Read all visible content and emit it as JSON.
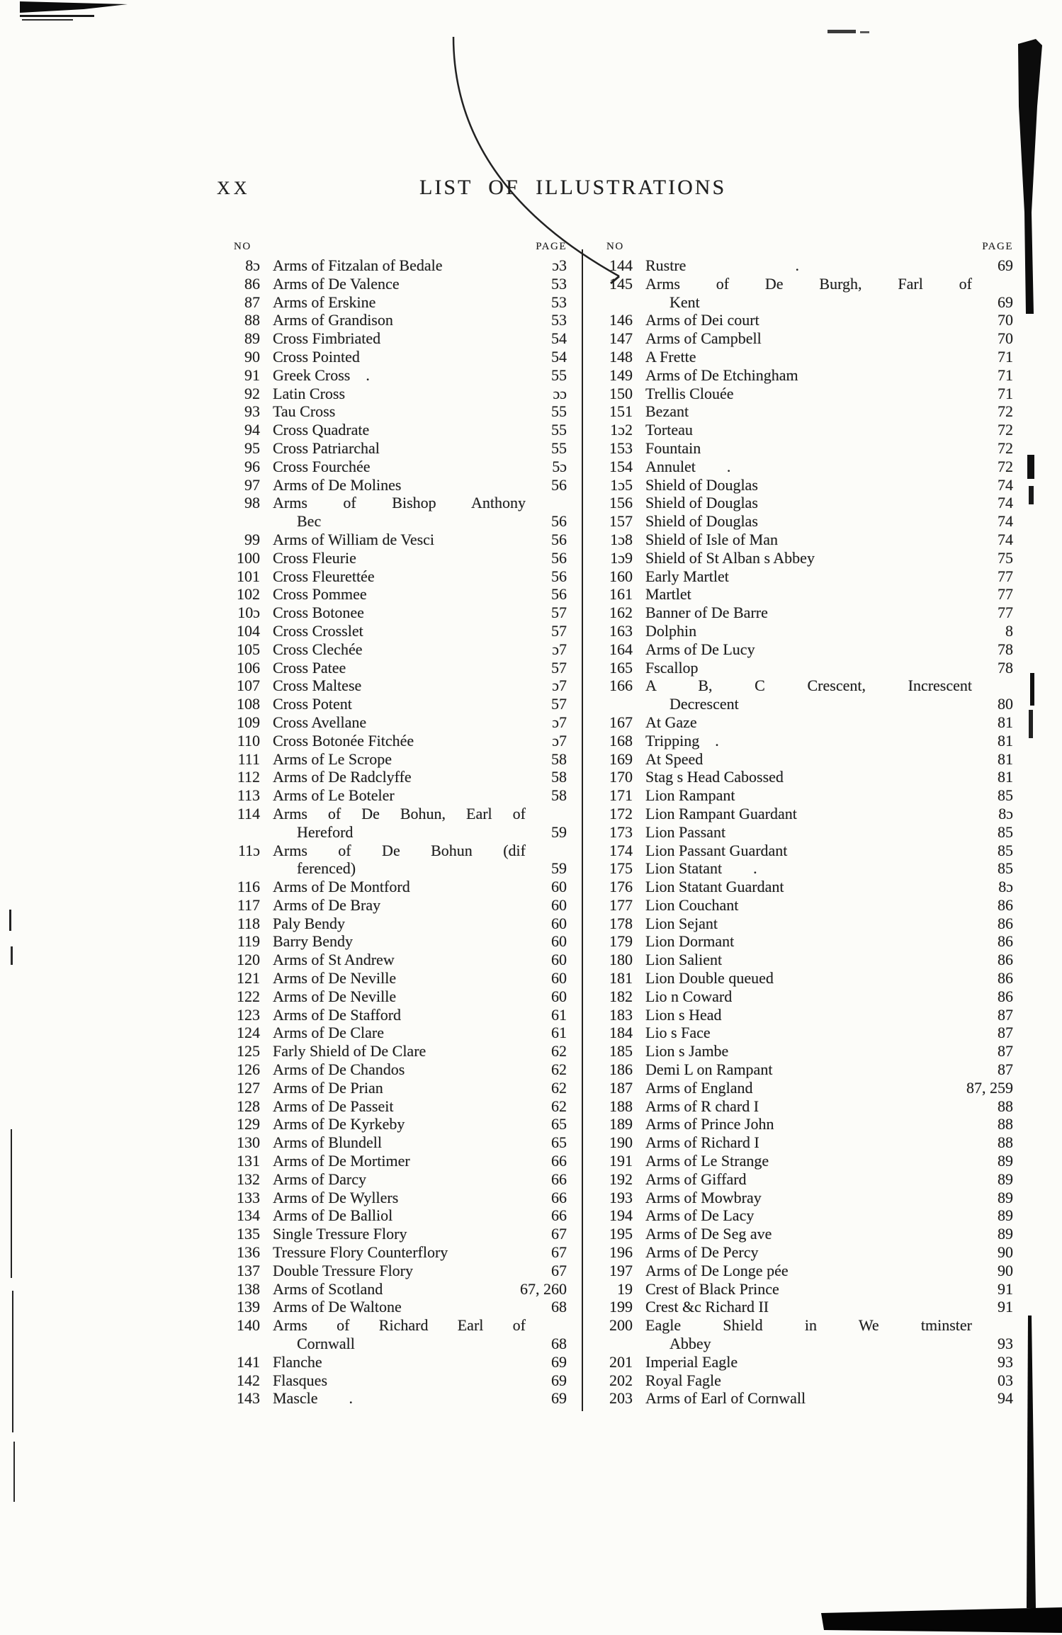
{
  "page": {
    "folio": "XX",
    "title": "LIST OF ILLUSTRATIONS"
  },
  "columns": {
    "no_header": "NO",
    "page_header": "PAGE"
  },
  "colors": {
    "paper": "#fcfcf9",
    "ink": "#1f1f1f",
    "artifact_ink": "#0c0c0c"
  },
  "left_entries": [
    {
      "no": "8ɔ",
      "line1": "Arms of Fitzalan of Bedale",
      "page": "ɔ3"
    },
    {
      "no": "86",
      "line1": "Arms of De Valence",
      "page": "53"
    },
    {
      "no": "87",
      "line1": "Arms of Erskine",
      "page": "53"
    },
    {
      "no": "88",
      "line1": "Arms of Grandison",
      "page": "53"
    },
    {
      "no": "89",
      "line1": "Cross Fimbriated",
      "page": "54"
    },
    {
      "no": "90",
      "line1": "Cross Pointed",
      "page": "54"
    },
    {
      "no": "91",
      "line1": "Greek Cross .",
      "page": "55"
    },
    {
      "no": "92",
      "line1": "Latin Cross",
      "page": "ɔɔ"
    },
    {
      "no": "93",
      "line1": "Tau Cross",
      "page": "55"
    },
    {
      "no": "94",
      "line1": "Cross Quadrate",
      "page": "55"
    },
    {
      "no": "95",
      "line1": "Cross Patriarchal",
      "page": "55"
    },
    {
      "no": "96",
      "line1": "Cross Fourchée",
      "page": "5ɔ"
    },
    {
      "no": "97",
      "line1": "Arms of De Molines",
      "page": "56"
    },
    {
      "no": "98",
      "line1": "Arms of Bishop Anthony",
      "line2": "Bec",
      "page": "56"
    },
    {
      "no": "99",
      "line1": "Arms of William de Vesci",
      "page": "56"
    },
    {
      "no": "100",
      "line1": "Cross Fleurie",
      "page": "56"
    },
    {
      "no": "101",
      "line1": "Cross Fleurettée",
      "page": "56"
    },
    {
      "no": "102",
      "line1": "Cross Pommee",
      "page": "56"
    },
    {
      "no": "10ɔ",
      "line1": "Cross Botonee",
      "page": "57"
    },
    {
      "no": "104",
      "line1": "Cross Crosslet",
      "page": "57"
    },
    {
      "no": "105",
      "line1": "Cross Clechée",
      "page": "ɔ7"
    },
    {
      "no": "106",
      "line1": "Cross Patee",
      "page": "57"
    },
    {
      "no": "107",
      "line1": "Cross Maltese",
      "page": "ɔ7"
    },
    {
      "no": "108",
      "line1": "Cross Potent",
      "page": "57"
    },
    {
      "no": "109",
      "line1": "Cross Avellane",
      "page": "ɔ7"
    },
    {
      "no": "110",
      "line1": "Cross Botonée Fitchée",
      "page": "ɔ7"
    },
    {
      "no": "111",
      "line1": "Arms of Le Scrope",
      "page": "58"
    },
    {
      "no": "112",
      "line1": "Arms of De Radclyffe",
      "page": "58"
    },
    {
      "no": "113",
      "line1": "Arms of Le Boteler",
      "page": "58"
    },
    {
      "no": "114",
      "line1": "Arms of De Bohun, Earl of",
      "line2": "Hereford",
      "page": "59"
    },
    {
      "no": "11ɔ",
      "line1": "Arms of De Bohun (dif",
      "line2": "ferenced)",
      "page": "59"
    },
    {
      "no": "116",
      "line1": "Arms of De Montford",
      "page": "60"
    },
    {
      "no": "117",
      "line1": "Arms of De Bray",
      "page": "60"
    },
    {
      "no": "118",
      "line1": "Paly Bendy",
      "page": "60"
    },
    {
      "no": "119",
      "line1": "Barry Bendy",
      "page": "60"
    },
    {
      "no": "120",
      "line1": "Arms of St Andrew",
      "page": "60"
    },
    {
      "no": "121",
      "line1": "Arms of De Neville",
      "page": "60"
    },
    {
      "no": "122",
      "line1": "Arms of De Neville",
      "page": "60"
    },
    {
      "no": "123",
      "line1": "Arms of De Stafford",
      "page": "61"
    },
    {
      "no": "124",
      "line1": "Arms of De Clare",
      "page": "61"
    },
    {
      "no": "125",
      "line1": "Farly Shield of De Clare",
      "page": "62"
    },
    {
      "no": "126",
      "line1": "Arms of De Chandos",
      "page": "62"
    },
    {
      "no": "127",
      "line1": "Arms of De Prian",
      "page": "62"
    },
    {
      "no": "128",
      "line1": "Arms of De Passeit",
      "page": "62"
    },
    {
      "no": "129",
      "line1": "Arms of De Kyrkeby",
      "page": "65"
    },
    {
      "no": "130",
      "line1": "Arms of Blundell",
      "page": "65"
    },
    {
      "no": "131",
      "line1": "Arms of De Mortimer",
      "page": "66"
    },
    {
      "no": "132",
      "line1": "Arms of Darcy",
      "page": "66"
    },
    {
      "no": "133",
      "line1": "Arms of De Wyllers",
      "page": "66"
    },
    {
      "no": "134",
      "line1": "Arms of De Balliol",
      "page": "66"
    },
    {
      "no": "135",
      "line1": "Single Tressure Flory",
      "page": "67"
    },
    {
      "no": "136",
      "line1": "Tressure Flory Counterflory",
      "page": "67"
    },
    {
      "no": "137",
      "line1": "Double Tressure Flory",
      "page": "67"
    },
    {
      "no": "138",
      "line1": "Arms of Scotland",
      "page": "67, 260"
    },
    {
      "no": "139",
      "line1": "Arms of De Waltone",
      "page": "68"
    },
    {
      "no": "140",
      "line1": "Arms of Richard Earl of",
      "line2": "Cornwall",
      "page": "68"
    },
    {
      "no": "141",
      "line1": "Flanche",
      "page": "69"
    },
    {
      "no": "142",
      "line1": "Flasques",
      "page": "69"
    },
    {
      "no": "143",
      "line1": "Mascle  .",
      "page": "69"
    }
  ],
  "right_entries": [
    {
      "no": "144",
      "line1": "Rustre       .",
      "page": "69"
    },
    {
      "no": "145",
      "line1": "Arms of De Burgh, Farl of",
      "line2": "Kent",
      "page": "69"
    },
    {
      "no": "146",
      "line1": "Arms of Dei court",
      "page": "70"
    },
    {
      "no": "147",
      "line1": "Arms of Campbell",
      "page": "70"
    },
    {
      "no": "148",
      "line1": "A Frette",
      "page": "71"
    },
    {
      "no": "149",
      "line1": "Arms of De Etchingham",
      "page": "71"
    },
    {
      "no": "150",
      "line1": "Trellis Clouée",
      "page": "71"
    },
    {
      "no": "151",
      "line1": "Bezant",
      "page": "72"
    },
    {
      "no": "1ɔ2",
      "line1": "Torteau",
      "page": "72"
    },
    {
      "no": "153",
      "line1": "Fountain",
      "page": "72"
    },
    {
      "no": "154",
      "line1": "Annulet  .",
      "page": "72"
    },
    {
      "no": "1ɔ5",
      "line1": "Shield of Douglas",
      "page": "74"
    },
    {
      "no": "156",
      "line1": "Shield of Douglas",
      "page": "74"
    },
    {
      "no": "157",
      "line1": "Shield of Douglas",
      "page": "74"
    },
    {
      "no": "1ɔ8",
      "line1": "Shield of Isle of Man",
      "page": "74"
    },
    {
      "no": "1ɔ9",
      "line1": "Shield of St Alban s Abbey",
      "page": "75"
    },
    {
      "no": "160",
      "line1": "Early Martlet",
      "page": "77"
    },
    {
      "no": "161",
      "line1": "Martlet",
      "page": "77"
    },
    {
      "no": "162",
      "line1": "Banner of De Barre",
      "page": "77"
    },
    {
      "no": "163",
      "line1": "Dolphin",
      "page": "8"
    },
    {
      "no": "164",
      "line1": "Arms of De Lucy",
      "page": "78"
    },
    {
      "no": "165",
      "line1": "Fscallop",
      "page": "78"
    },
    {
      "no": "166",
      "line1": "A B, C Crescent, Increscent",
      "line2": "Decrescent",
      "page": "80"
    },
    {
      "no": "167",
      "line1": "At Gaze",
      "page": "81"
    },
    {
      "no": "168",
      "line1": "Tripping .",
      "page": "81"
    },
    {
      "no": "169",
      "line1": "At Speed",
      "page": "81"
    },
    {
      "no": "170",
      "line1": "Stag s Head Cabossed",
      "page": "81"
    },
    {
      "no": "171",
      "line1": "Lion Rampant",
      "page": "85"
    },
    {
      "no": "172",
      "line1": "Lion Rampant Guardant",
      "page": "8ɔ"
    },
    {
      "no": "173",
      "line1": "Lion Passant",
      "page": "85"
    },
    {
      "no": "174",
      "line1": "Lion Passant Guardant",
      "page": "85"
    },
    {
      "no": "175",
      "line1": "Lion Statant  .",
      "page": "85"
    },
    {
      "no": "176",
      "line1": "Lion Statant Guardant",
      "page": "8ɔ"
    },
    {
      "no": "177",
      "line1": "Lion Couchant",
      "page": "86"
    },
    {
      "no": "178",
      "line1": "Lion Sejant",
      "page": "86"
    },
    {
      "no": "179",
      "line1": "Lion Dormant",
      "page": "86"
    },
    {
      "no": "180",
      "line1": "Lion Salient",
      "page": "86"
    },
    {
      "no": "181",
      "line1": "Lion Double queued",
      "page": "86"
    },
    {
      "no": "182",
      "line1": "Lio n Coward",
      "page": "86"
    },
    {
      "no": "183",
      "line1": "Lion s Head",
      "page": "87"
    },
    {
      "no": "184",
      "line1": "Lio s Face",
      "page": "87"
    },
    {
      "no": "185",
      "line1": "Lion s Jambe",
      "page": "87"
    },
    {
      "no": "186",
      "line1": "Demi L on Rampant",
      "page": "87"
    },
    {
      "no": "187",
      "line1": "Arms of England",
      "page": "87, 259"
    },
    {
      "no": "188",
      "line1": "Arms of R chard I",
      "page": "88"
    },
    {
      "no": "189",
      "line1": "Arms of Prince John",
      "page": "88"
    },
    {
      "no": "190",
      "line1": "Arms of Richard I",
      "page": "88"
    },
    {
      "no": "191",
      "line1": "Arms of Le Strange",
      "page": "89"
    },
    {
      "no": "192",
      "line1": "Arms of Giffard",
      "page": "89"
    },
    {
      "no": "193",
      "line1": "Arms of Mowbray",
      "page": "89"
    },
    {
      "no": "194",
      "line1": "Arms of De Lacy",
      "page": "89"
    },
    {
      "no": "195",
      "line1": "Arms of De Seg ave",
      "page": "89"
    },
    {
      "no": "196",
      "line1": "Arms of De Percy",
      "page": "90"
    },
    {
      "no": "197",
      "line1": "Arms of De Longe pée",
      "page": "90"
    },
    {
      "no": "19",
      "line1": "Crest of Black Prince",
      "page": "91"
    },
    {
      "no": "199",
      "line1": "Crest &c Richard II",
      "page": "91"
    },
    {
      "no": "200",
      "line1": "Eagle Shield in We tminster",
      "line2": "Abbey",
      "page": "93"
    },
    {
      "no": "201",
      "line1": "Imperial Eagle",
      "page": "93"
    },
    {
      "no": "202",
      "line1": "Royal Fagle",
      "page": "03"
    },
    {
      "no": "203",
      "line1": "Arms of Earl of Cornwall",
      "page": "94"
    }
  ]
}
